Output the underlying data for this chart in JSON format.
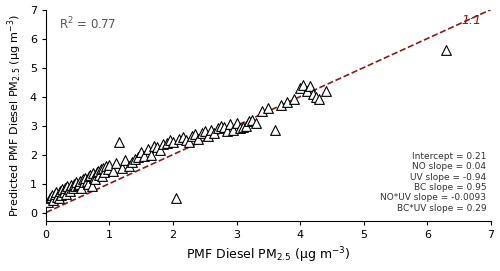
{
  "title": "",
  "xlabel": "PMF Diesel PM$_{2.5}$ (μg m$^{-3}$)",
  "ylabel": "Predicted PMF Diesel PM$_{2.5}$ (μg m$^{-3}$)",
  "xlim": [
    0,
    7
  ],
  "ylim": [
    -0.3,
    7
  ],
  "xticks": [
    0,
    1,
    2,
    3,
    4,
    5,
    6,
    7
  ],
  "yticks": [
    0,
    1,
    2,
    3,
    4,
    5,
    6,
    7
  ],
  "r2": "R$^2$ = 0.77",
  "one_to_one_label": "1:1",
  "one_to_one_color": "#8B1A1A",
  "annotation_text": "Intercept = 0.21\nNO slope = 0.04\nUV slope = -0.94\nBC slope = 0.95\nNO*UV slope = -0.0093\nBC*UV slope = 0.29",
  "marker_color": "black",
  "marker_facecolor": "white",
  "marker_size": 7,
  "marker_lw": 0.8,
  "background_color": "white",
  "scatter_x": [
    0.04,
    0.06,
    0.08,
    0.1,
    0.12,
    0.14,
    0.16,
    0.18,
    0.2,
    0.22,
    0.24,
    0.26,
    0.28,
    0.3,
    0.32,
    0.34,
    0.36,
    0.38,
    0.4,
    0.42,
    0.44,
    0.46,
    0.48,
    0.5,
    0.52,
    0.54,
    0.56,
    0.58,
    0.6,
    0.62,
    0.64,
    0.66,
    0.68,
    0.7,
    0.72,
    0.74,
    0.76,
    0.78,
    0.8,
    0.82,
    0.84,
    0.86,
    0.88,
    0.9,
    0.92,
    0.95,
    0.98,
    1.0,
    1.05,
    1.1,
    1.15,
    1.2,
    1.25,
    1.3,
    1.35,
    1.4,
    1.45,
    1.5,
    1.55,
    1.6,
    1.65,
    1.7,
    1.75,
    1.8,
    1.85,
    1.9,
    1.95,
    2.0,
    2.05,
    2.1,
    2.15,
    2.2,
    2.25,
    2.3,
    2.35,
    2.4,
    2.45,
    2.5,
    2.55,
    2.6,
    2.65,
    2.7,
    2.75,
    2.8,
    2.85,
    2.9,
    2.95,
    3.0,
    3.05,
    3.1,
    3.15,
    3.2,
    3.25,
    3.3,
    3.4,
    3.5,
    3.6,
    3.7,
    3.8,
    3.9,
    4.0,
    4.05,
    4.1,
    4.15,
    4.2,
    4.25,
    4.3,
    4.4,
    6.3
  ],
  "scatter_y": [
    0.35,
    0.5,
    0.55,
    0.6,
    0.45,
    0.65,
    0.7,
    0.55,
    0.5,
    0.75,
    0.6,
    0.8,
    0.7,
    0.85,
    0.65,
    0.9,
    0.8,
    0.75,
    0.95,
    0.85,
    1.0,
    0.9,
    1.05,
    0.95,
    1.0,
    1.1,
    0.85,
    1.15,
    1.05,
    1.2,
    1.1,
    1.0,
    1.25,
    1.3,
    0.9,
    1.35,
    1.2,
    1.15,
    1.4,
    1.45,
    1.3,
    1.5,
    1.25,
    1.55,
    1.4,
    1.6,
    1.5,
    1.65,
    1.45,
    1.7,
    2.45,
    1.55,
    1.8,
    1.6,
    1.75,
    1.85,
    1.9,
    2.1,
    1.95,
    2.2,
    2.0,
    2.3,
    2.25,
    2.15,
    2.35,
    2.4,
    2.5,
    2.45,
    0.5,
    2.55,
    2.6,
    2.5,
    2.45,
    2.65,
    2.7,
    2.55,
    2.75,
    2.8,
    2.65,
    2.85,
    2.75,
    2.9,
    3.0,
    2.95,
    2.8,
    3.05,
    2.85,
    3.1,
    2.9,
    2.95,
    3.0,
    3.15,
    3.2,
    3.1,
    3.5,
    3.6,
    2.85,
    3.7,
    3.8,
    3.9,
    4.3,
    4.4,
    4.2,
    4.35,
    4.1,
    4.0,
    3.9,
    4.2,
    5.6
  ]
}
